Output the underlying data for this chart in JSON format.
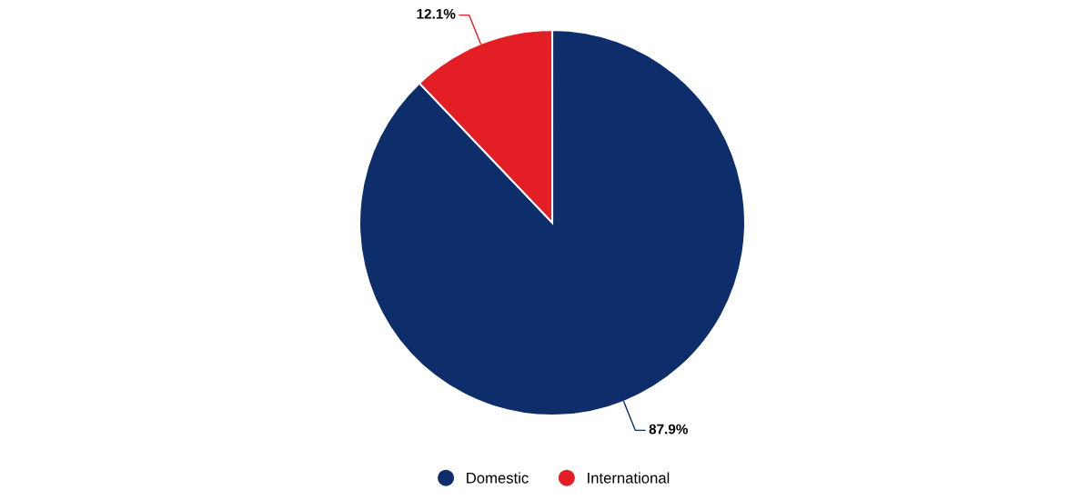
{
  "chart_data": {
    "type": "pie",
    "categories": [
      "Domestic",
      "International"
    ],
    "values": [
      87.9,
      12.1
    ],
    "colors": [
      "#0e2d6b",
      "#e31e25"
    ],
    "value_labels": [
      "87.9%",
      "12.1%"
    ],
    "legend": "bottom"
  }
}
